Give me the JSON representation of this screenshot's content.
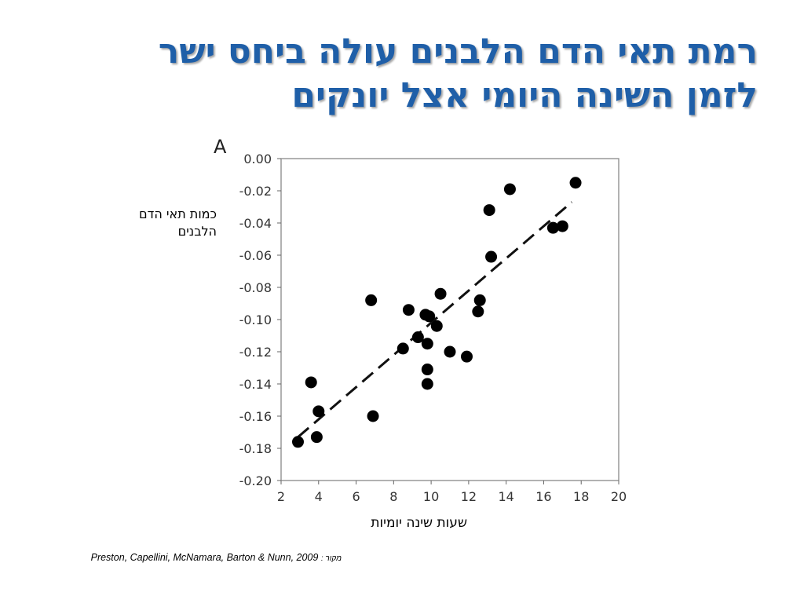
{
  "slide": {
    "title_line1": "רמת תאי הדם הלבנים עולה ביחס ישר",
    "title_line2": "לזמן השינה היומי אצל יונקים",
    "source_label": "מקור :",
    "source_text": "Preston, Capellini, McNamara, Barton & Nunn, 2009"
  },
  "chart_data": {
    "type": "scatter",
    "panel_label": "A",
    "xlabel": "שעות שינה יומיות",
    "ylabel": "כמות תאי הדם הלבנים",
    "xlim": [
      2,
      20
    ],
    "ylim": [
      -0.2,
      0
    ],
    "x_ticks": [
      "2",
      "4",
      "6",
      "8",
      "10",
      "12",
      "14",
      "16",
      "18",
      "20"
    ],
    "y_ticks": [
      "0.00",
      "-0.02",
      "-0.04",
      "-0.06",
      "-0.08",
      "-0.10",
      "-0.12",
      "-0.14",
      "-0.16",
      "-0.18",
      "-0.20"
    ],
    "grid": false,
    "points": [
      {
        "x": 2.9,
        "y": -0.176
      },
      {
        "x": 3.6,
        "y": -0.139
      },
      {
        "x": 3.9,
        "y": -0.173
      },
      {
        "x": 4.0,
        "y": -0.157
      },
      {
        "x": 6.8,
        "y": -0.088
      },
      {
        "x": 6.9,
        "y": -0.16
      },
      {
        "x": 8.5,
        "y": -0.118
      },
      {
        "x": 8.8,
        "y": -0.094
      },
      {
        "x": 9.3,
        "y": -0.111
      },
      {
        "x": 9.7,
        "y": -0.097
      },
      {
        "x": 9.8,
        "y": -0.115
      },
      {
        "x": 9.9,
        "y": -0.098
      },
      {
        "x": 9.8,
        "y": -0.131
      },
      {
        "x": 9.8,
        "y": -0.14
      },
      {
        "x": 10.3,
        "y": -0.104
      },
      {
        "x": 10.5,
        "y": -0.084
      },
      {
        "x": 11.0,
        "y": -0.12
      },
      {
        "x": 11.9,
        "y": -0.123
      },
      {
        "x": 12.5,
        "y": -0.095
      },
      {
        "x": 12.6,
        "y": -0.088
      },
      {
        "x": 13.1,
        "y": -0.032
      },
      {
        "x": 13.2,
        "y": -0.061
      },
      {
        "x": 14.2,
        "y": -0.019
      },
      {
        "x": 16.5,
        "y": -0.043
      },
      {
        "x": 17.0,
        "y": -0.042
      },
      {
        "x": 17.7,
        "y": -0.015
      }
    ],
    "trendline": {
      "style": "dashed",
      "from": {
        "x": 2.9,
        "y": -0.173
      },
      "to": {
        "x": 17.5,
        "y": -0.027
      }
    },
    "colors": {
      "points": "#000000",
      "axis": "#555555",
      "tick_text": "#333333",
      "title": "#1f5fa8"
    }
  }
}
